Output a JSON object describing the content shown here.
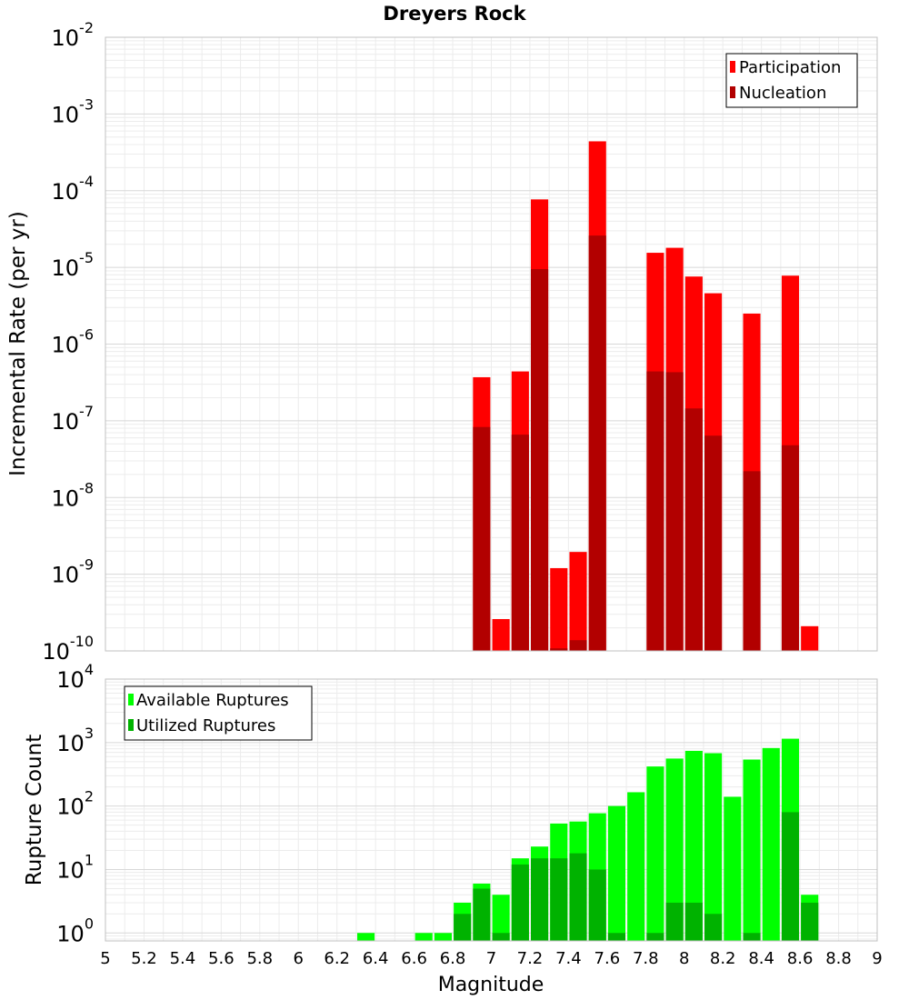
{
  "chart_data": [
    {
      "type": "bar",
      "title": "Dreyers Rock",
      "xlabel": "Magnitude",
      "ylabel": "Incremental Rate (per yr)",
      "y_scale": "log",
      "ylim": [
        1e-10,
        0.01
      ],
      "xlim": [
        5,
        9
      ],
      "y_tick_labels": [
        {
          "base": "10",
          "exp": "-10"
        },
        {
          "base": "10",
          "exp": "-9"
        },
        {
          "base": "10",
          "exp": "-8"
        },
        {
          "base": "10",
          "exp": "-7"
        },
        {
          "base": "10",
          "exp": "-6"
        },
        {
          "base": "10",
          "exp": "-5"
        },
        {
          "base": "10",
          "exp": "-4"
        },
        {
          "base": "10",
          "exp": "-3"
        },
        {
          "base": "10",
          "exp": "-2"
        }
      ],
      "legend_position": "top-right",
      "grid": true,
      "x": [
        6.95,
        7.05,
        7.15,
        7.25,
        7.35,
        7.45,
        7.55,
        7.85,
        7.95,
        8.05,
        8.15,
        8.35,
        8.55,
        8.65
      ],
      "series": [
        {
          "name": "Participation",
          "color": "#ff0000",
          "values": [
            3.7e-07,
            2.6e-10,
            4.4e-07,
            7.7e-05,
            1.2e-09,
            1.95e-09,
            0.00044,
            1.55e-05,
            1.8e-05,
            7.6e-06,
            4.6e-06,
            2.5e-06,
            7.8e-06,
            2.1e-10
          ]
        },
        {
          "name": "Nucleation",
          "color": "#b20000",
          "values": [
            8.3e-08,
            null,
            6.6e-08,
            9.5e-06,
            1.08e-10,
            1.38e-10,
            2.6e-05,
            4.4e-07,
            4.3e-07,
            1.45e-07,
            6.4e-08,
            2.2e-08,
            4.8e-08,
            null
          ]
        }
      ]
    },
    {
      "type": "bar",
      "title": "",
      "xlabel": "Magnitude",
      "ylabel": "Rupture Count",
      "y_scale": "log",
      "ylim": [
        0.75,
        10000
      ],
      "xlim": [
        5,
        9
      ],
      "x_tick_labels": [
        "5",
        "5.2",
        "5.4",
        "5.6",
        "5.8",
        "6",
        "6.2",
        "6.4",
        "6.6",
        "6.8",
        "7",
        "7.2",
        "7.4",
        "7.6",
        "7.8",
        "8",
        "8.2",
        "8.4",
        "8.6",
        "8.8",
        "9"
      ],
      "y_tick_labels": [
        {
          "base": "10",
          "exp": "0"
        },
        {
          "base": "10",
          "exp": "1"
        },
        {
          "base": "10",
          "exp": "2"
        },
        {
          "base": "10",
          "exp": "3"
        },
        {
          "base": "10",
          "exp": "4"
        }
      ],
      "legend_position": "top-left",
      "grid": true,
      "x": [
        6.35,
        6.65,
        6.75,
        6.85,
        6.95,
        7.05,
        7.15,
        7.25,
        7.35,
        7.45,
        7.55,
        7.65,
        7.75,
        7.85,
        7.95,
        8.05,
        8.15,
        8.25,
        8.35,
        8.45,
        8.55,
        8.65
      ],
      "series": [
        {
          "name": "Available Ruptures",
          "color": "#00ff00",
          "values": [
            1,
            1,
            1,
            3,
            6,
            4,
            15,
            23,
            53,
            57,
            77,
            100,
            165,
            420,
            560,
            740,
            680,
            140,
            540,
            820,
            1150,
            4
          ]
        },
        {
          "name": "Utilized Ruptures",
          "color": "#00b200",
          "values": [
            null,
            null,
            null,
            2,
            5,
            1,
            12,
            15,
            15,
            18,
            10,
            1,
            null,
            1,
            3,
            3,
            2,
            null,
            1,
            null,
            80,
            3
          ]
        }
      ]
    }
  ]
}
